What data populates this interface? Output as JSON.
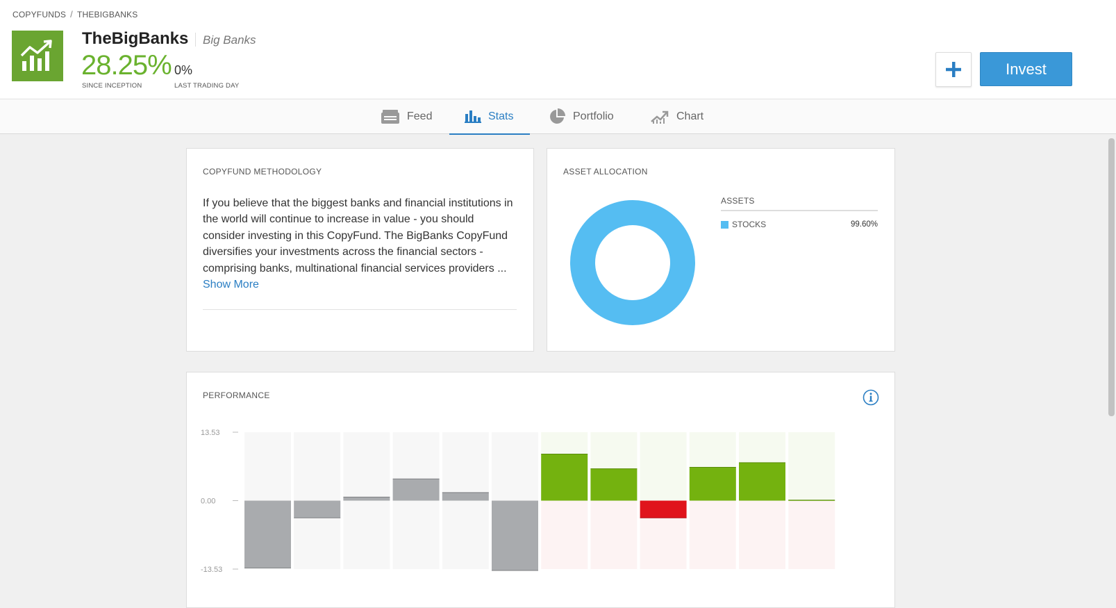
{
  "breadcrumb": {
    "root": "COPYFUNDS",
    "separator": "/",
    "current": "THEBIGBANKS"
  },
  "fund": {
    "name": "TheBigBanks",
    "subtitle": "Big Banks",
    "gain": "28.25%",
    "gain_label": "SINCE INCEPTION",
    "daily": "0%",
    "daily_label": "LAST TRADING DAY",
    "logo_icon": "growth-chart-icon"
  },
  "actions": {
    "plus_icon": "plus-icon",
    "invest_label": "Invest"
  },
  "tabs": [
    {
      "label": "Feed",
      "icon": "feed-icon",
      "active": false
    },
    {
      "label": "Stats",
      "icon": "bar-chart-icon",
      "active": true
    },
    {
      "label": "Portfolio",
      "icon": "pie-chart-icon",
      "active": false
    },
    {
      "label": "Chart",
      "icon": "line-chart-icon",
      "active": false
    }
  ],
  "methodology": {
    "title": "COPYFUND METHODOLOGY",
    "text": "If you believe that the biggest banks and financial institutions in the world will continue to increase in value - you should consider investing in this CopyFund. The BigBanks CopyFund diversifies your investments across the financial sectors - comprising banks, multinational financial services providers ...",
    "show_more": "Show More"
  },
  "allocation": {
    "title": "ASSET ALLOCATION",
    "assets_header": "ASSETS",
    "assets": [
      {
        "name": "STOCKS",
        "value": "99.60%",
        "color": "#55bdf2"
      }
    ]
  },
  "performance": {
    "title": "PERFORMANCE",
    "info_icon": "info-icon"
  },
  "colors": {
    "accent": "#2a7ec3",
    "gain": "#6ab22e",
    "positive_bar": "#74b20f",
    "negative_bar": "#e0141c",
    "past_bar": "#a9abae"
  },
  "chart_data": {
    "type": "bar",
    "title": "PERFORMANCE",
    "ylim": [
      -13.53,
      13.53
    ],
    "yticks": [
      "13.53",
      "0.00",
      "-13.53"
    ],
    "series": [
      {
        "values": [
          -13.3,
          -3.4,
          0.7,
          4.3,
          1.6,
          -13.8,
          9.2,
          6.3,
          -3.4,
          6.6,
          7.5,
          0.1
        ],
        "status": [
          "past",
          "past",
          "past",
          "past",
          "past",
          "past",
          "current",
          "current",
          "current",
          "current",
          "current",
          "current"
        ]
      }
    ]
  }
}
